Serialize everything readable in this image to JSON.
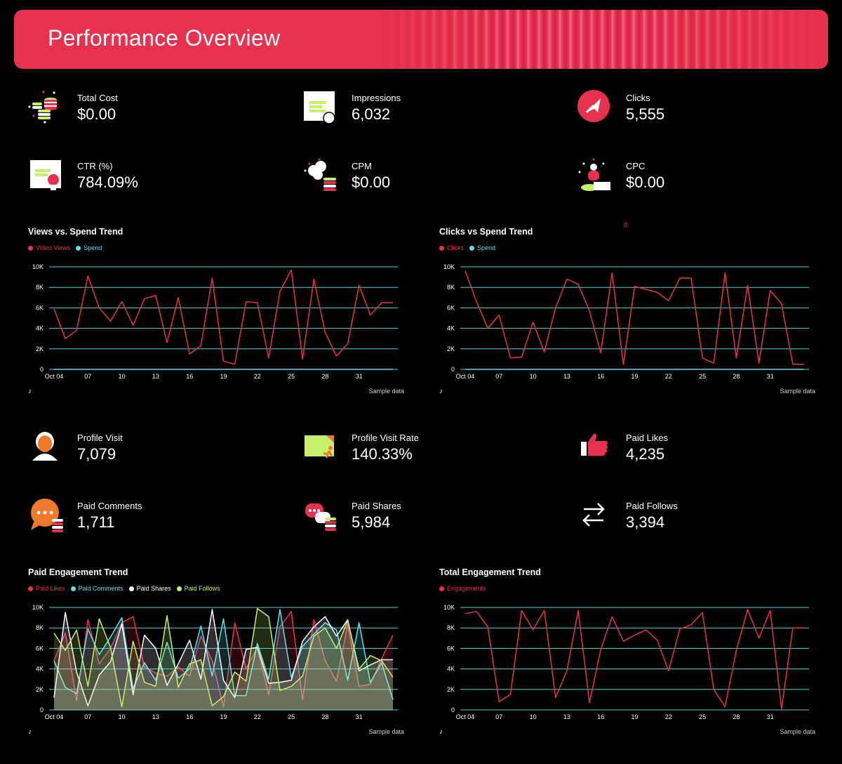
{
  "header": {
    "title": "Performance Overview"
  },
  "kpis": [
    {
      "label": "Total Cost",
      "value": "$0.00",
      "icon": "coins-icon"
    },
    {
      "label": "Impressions",
      "value": "6,032",
      "icon": "impressions-icon"
    },
    {
      "label": "Clicks",
      "value": "5,555",
      "icon": "cursor-icon"
    },
    {
      "label": "CTR (%)",
      "value": "784.09%",
      "icon": "certificate-icon"
    },
    {
      "label": "CPM",
      "value": "$0.00",
      "icon": "cpm-icon"
    },
    {
      "label": "CPC",
      "value": "$0.00",
      "icon": "person-podium-icon"
    },
    {
      "label": "Profile Visit",
      "value": "7,079",
      "icon": "profile-icon"
    },
    {
      "label": "Profile Visit Rate",
      "value": "140.33%",
      "icon": "card-runner-icon"
    },
    {
      "label": "Paid Likes",
      "value": "4,235",
      "icon": "thumbs-up-icon"
    },
    {
      "label": "Paid Comments",
      "value": "1,711",
      "icon": "comment-bubble-icon"
    },
    {
      "label": "Paid Shares",
      "value": "5,984",
      "icon": "chat-share-icon"
    },
    {
      "label": "Paid Follows",
      "value": "3,394",
      "icon": "swap-arrows-icon"
    }
  ],
  "footer": {
    "sample_label": "Sample data",
    "logo_icon": "tiktok-icon"
  },
  "colors": {
    "red": "#e8304f",
    "cyan": "#5ce1e6",
    "white": "#ffffff",
    "lime": "#c6f06a",
    "grid": "#4fd4d8"
  },
  "chart_data": [
    {
      "title": "Views vs. Spend Trend",
      "type": "line",
      "x": [
        "Oct 04",
        "05",
        "06",
        "07",
        "08",
        "09",
        "10",
        "11",
        "12",
        "13",
        "14",
        "15",
        "16",
        "17",
        "18",
        "19",
        "20",
        "21",
        "22",
        "23",
        "24",
        "25",
        "26",
        "27",
        "28",
        "29",
        "30",
        "31",
        "Nov 01",
        "02",
        "03"
      ],
      "xticks": [
        "Oct 04",
        "07",
        "10",
        "13",
        "16",
        "19",
        "22",
        "25",
        "28",
        "31"
      ],
      "yticks": [
        "0",
        "2K",
        "4K",
        "6K",
        "8K",
        "10K"
      ],
      "ylim": [
        0,
        10000
      ],
      "series": [
        {
          "name": "Video Views",
          "color": "#e8304f",
          "fill": false,
          "values": [
            5900,
            3000,
            3800,
            9100,
            6000,
            4700,
            6600,
            4300,
            6900,
            7200,
            2600,
            7000,
            1500,
            2300,
            8900,
            800,
            500,
            6600,
            6500,
            1100,
            7600,
            9700,
            1000,
            8800,
            3600,
            1300,
            2500,
            8200,
            5300,
            6500,
            6500
          ]
        },
        {
          "name": "Spend",
          "color": "#5ce1e6",
          "fill": false,
          "values": [
            0,
            0,
            0,
            0,
            0,
            0,
            0,
            0,
            0,
            0,
            0,
            0,
            0,
            0,
            0,
            0,
            0,
            0,
            0,
            0,
            0,
            0,
            0,
            0,
            0,
            0,
            0,
            0,
            0,
            0,
            0
          ]
        }
      ]
    },
    {
      "title": "Clicks vs Spend Trend",
      "type": "line",
      "x": [
        "Oct 04",
        "05",
        "06",
        "07",
        "08",
        "09",
        "10",
        "11",
        "12",
        "13",
        "14",
        "15",
        "16",
        "17",
        "18",
        "19",
        "20",
        "21",
        "22",
        "23",
        "24",
        "25",
        "26",
        "27",
        "28",
        "29",
        "30",
        "31",
        "Nov 01",
        "02",
        "03"
      ],
      "xticks": [
        "Oct 04",
        "07",
        "10",
        "13",
        "16",
        "19",
        "22",
        "25",
        "28",
        "31"
      ],
      "yticks": [
        "0",
        "2K",
        "4K",
        "6K",
        "8K",
        "10K"
      ],
      "ylim": [
        0,
        10000
      ],
      "series": [
        {
          "name": "Clicks",
          "color": "#e8304f",
          "fill": false,
          "values": [
            9600,
            6600,
            4000,
            5300,
            1100,
            1200,
            4600,
            1700,
            6000,
            8800,
            8300,
            5700,
            1600,
            9400,
            500,
            8100,
            7800,
            7500,
            6700,
            8900,
            8900,
            1100,
            600,
            9400,
            1100,
            8200,
            600,
            7700,
            6400,
            500,
            500
          ]
        },
        {
          "name": "Spend",
          "color": "#5ce1e6",
          "fill": false,
          "values": [
            0,
            0,
            0,
            0,
            0,
            0,
            0,
            0,
            0,
            0,
            0,
            0,
            0,
            0,
            0,
            0,
            0,
            0,
            0,
            0,
            0,
            0,
            0,
            0,
            0,
            0,
            0,
            0,
            0,
            0,
            0
          ]
        }
      ]
    },
    {
      "title": "Paid Engagement Trend",
      "type": "area",
      "x": [
        "Oct 04",
        "05",
        "06",
        "07",
        "08",
        "09",
        "10",
        "11",
        "12",
        "13",
        "14",
        "15",
        "16",
        "17",
        "18",
        "19",
        "20",
        "21",
        "22",
        "23",
        "24",
        "25",
        "26",
        "27",
        "28",
        "29",
        "30",
        "31",
        "Nov 01",
        "02",
        "03"
      ],
      "xticks": [
        "Oct 04",
        "07",
        "10",
        "13",
        "16",
        "19",
        "22",
        "25",
        "28",
        "31"
      ],
      "yticks": [
        "0",
        "2K",
        "4K",
        "6K",
        "8K",
        "10K"
      ],
      "ylim": [
        0,
        10000
      ],
      "series": [
        {
          "name": "Paid Likes",
          "color": "#e8304f",
          "fill": true,
          "values": [
            4800,
            7500,
            900,
            8800,
            4500,
            6000,
            8500,
            9100,
            4200,
            3600,
            3300,
            4200,
            3300,
            7200,
            4800,
            300,
            8500,
            4000,
            6100,
            1500,
            8100,
            9600,
            1000,
            8800,
            4800,
            2800,
            8300,
            2300,
            2500,
            5000,
            7300
          ]
        },
        {
          "name": "Paid Comments",
          "color": "#5ce1e6",
          "fill": true,
          "values": [
            4800,
            2200,
            1600,
            7900,
            5400,
            7100,
            9000,
            2100,
            4600,
            2900,
            6600,
            3100,
            4000,
            8200,
            3300,
            8900,
            1400,
            1400,
            6500,
            3000,
            9800,
            3200,
            6200,
            7400,
            8500,
            7800,
            2900,
            8500,
            2700,
            4600,
            1000
          ]
        },
        {
          "name": "Paid Shares",
          "color": "#ffffff",
          "fill": true,
          "values": [
            1200,
            9500,
            3700,
            400,
            3400,
            4700,
            8400,
            1500,
            7300,
            6000,
            2400,
            4500,
            6800,
            3000,
            9800,
            2900,
            1200,
            5900,
            6100,
            2600,
            2700,
            2900,
            6700,
            8100,
            9100,
            7200,
            8800,
            3800,
            4400,
            4900,
            4900
          ]
        },
        {
          "name": "Paid Follows",
          "color": "#c6f06a",
          "fill": true,
          "values": [
            7500,
            5800,
            7800,
            2300,
            8900,
            6100,
            300,
            6700,
            2700,
            2300,
            9200,
            2200,
            4500,
            4900,
            400,
            1300,
            3700,
            2800,
            9900,
            9100,
            1900,
            2300,
            3300,
            7200,
            8000,
            6000,
            8700,
            4000,
            5300,
            4800,
            3200
          ]
        }
      ]
    },
    {
      "title": "Total Engagement Trend",
      "type": "line",
      "x": [
        "Oct 04",
        "05",
        "06",
        "07",
        "08",
        "09",
        "10",
        "11",
        "12",
        "13",
        "14",
        "15",
        "16",
        "17",
        "18",
        "19",
        "20",
        "21",
        "22",
        "23",
        "24",
        "25",
        "26",
        "27",
        "28",
        "29",
        "30",
        "31",
        "Nov 01",
        "02",
        "03"
      ],
      "xticks": [
        "Oct 04",
        "07",
        "10",
        "13",
        "16",
        "19",
        "22",
        "25",
        "28",
        "31"
      ],
      "yticks": [
        "0",
        "2K",
        "4K",
        "6K",
        "8K",
        "10K"
      ],
      "ylim": [
        0,
        10000
      ],
      "series": [
        {
          "name": "Engagements",
          "color": "#e8304f",
          "fill": false,
          "values": [
            9400,
            9600,
            8100,
            800,
            1500,
            9700,
            7800,
            9700,
            1200,
            3800,
            9700,
            700,
            5900,
            9100,
            6700,
            7300,
            7800,
            6800,
            3800,
            7900,
            8300,
            9500,
            2000,
            300,
            5800,
            9800,
            7000,
            9700,
            100,
            8000,
            8000
          ]
        }
      ]
    }
  ]
}
